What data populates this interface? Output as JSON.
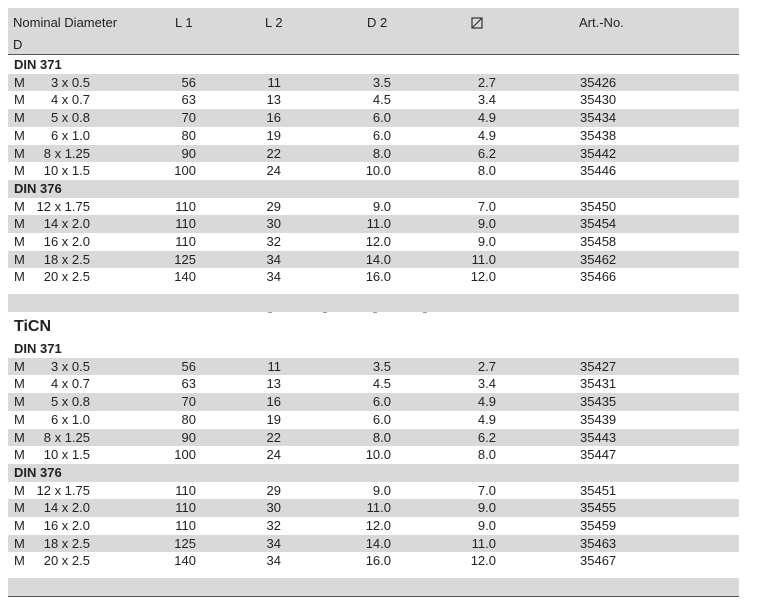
{
  "headers": {
    "nominal_diameter": "Nominal Diameter",
    "d": "D",
    "l1": "L 1",
    "l2": "L 2",
    "d2": "D 2",
    "square_symbol": "☐̸",
    "art_no": "Art.-No."
  },
  "sections": [
    {
      "title": "",
      "groups": [
        {
          "name": "DIN 371",
          "rows": [
            {
              "m": "M",
              "size": "3 x 0.5",
              "l1": "56",
              "l2": "11",
              "d2": "3.5",
              "sq": "2.7",
              "art": "35426"
            },
            {
              "m": "M",
              "size": "4 x 0.7",
              "l1": "63",
              "l2": "13",
              "d2": "4.5",
              "sq": "3.4",
              "art": "35430"
            },
            {
              "m": "M",
              "size": "5 x 0.8",
              "l1": "70",
              "l2": "16",
              "d2": "6.0",
              "sq": "4.9",
              "art": "35434"
            },
            {
              "m": "M",
              "size": "6 x 1.0",
              "l1": "80",
              "l2": "19",
              "d2": "6.0",
              "sq": "4.9",
              "art": "35438"
            },
            {
              "m": "M",
              "size": "8 x 1.25",
              "l1": "90",
              "l2": "22",
              "d2": "8.0",
              "sq": "6.2",
              "art": "35442"
            },
            {
              "m": "M",
              "size": "10 x 1.5",
              "l1": "100",
              "l2": "24",
              "d2": "10.0",
              "sq": "8.0",
              "art": "35446"
            }
          ]
        },
        {
          "name": "DIN 376",
          "rows": [
            {
              "m": "M",
              "size": "12 x 1.75",
              "l1": "110",
              "l2": "29",
              "d2": "9.0",
              "sq": "7.0",
              "art": "35450"
            },
            {
              "m": "M",
              "size": "14 x 2.0",
              "l1": "110",
              "l2": "30",
              "d2": "11.0",
              "sq": "9.0",
              "art": "35454"
            },
            {
              "m": "M",
              "size": "16 x 2.0",
              "l1": "110",
              "l2": "32",
              "d2": "12.0",
              "sq": "9.0",
              "art": "35458"
            },
            {
              "m": "M",
              "size": "18 x 2.5",
              "l1": "125",
              "l2": "34",
              "d2": "14.0",
              "sq": "11.0",
              "art": "35462"
            },
            {
              "m": "M",
              "size": "20 x 2.5",
              "l1": "140",
              "l2": "34",
              "d2": "16.0",
              "sq": "12.0",
              "art": "35466"
            }
          ]
        }
      ]
    },
    {
      "title": "TiCN",
      "groups": [
        {
          "name": "DIN 371",
          "rows": [
            {
              "m": "M",
              "size": "3 x 0.5",
              "l1": "56",
              "l2": "11",
              "d2": "3.5",
              "sq": "2.7",
              "art": "35427"
            },
            {
              "m": "M",
              "size": "4 x 0.7",
              "l1": "63",
              "l2": "13",
              "d2": "4.5",
              "sq": "3.4",
              "art": "35431"
            },
            {
              "m": "M",
              "size": "5 x 0.8",
              "l1": "70",
              "l2": "16",
              "d2": "6.0",
              "sq": "4.9",
              "art": "35435"
            },
            {
              "m": "M",
              "size": "6 x 1.0",
              "l1": "80",
              "l2": "19",
              "d2": "6.0",
              "sq": "4.9",
              "art": "35439"
            },
            {
              "m": "M",
              "size": "8 x 1.25",
              "l1": "90",
              "l2": "22",
              "d2": "8.0",
              "sq": "6.2",
              "art": "35443"
            },
            {
              "m": "M",
              "size": "10 x 1.5",
              "l1": "100",
              "l2": "24",
              "d2": "10.0",
              "sq": "8.0",
              "art": "35447"
            }
          ]
        },
        {
          "name": "DIN 376",
          "rows": [
            {
              "m": "M",
              "size": "12 x 1.75",
              "l1": "110",
              "l2": "29",
              "d2": "9.0",
              "sq": "7.0",
              "art": "35451"
            },
            {
              "m": "M",
              "size": "14 x 2.0",
              "l1": "110",
              "l2": "30",
              "d2": "11.0",
              "sq": "9.0",
              "art": "35455"
            },
            {
              "m": "M",
              "size": "16 x 2.0",
              "l1": "110",
              "l2": "32",
              "d2": "12.0",
              "sq": "9.0",
              "art": "35459"
            },
            {
              "m": "M",
              "size": "18 x 2.5",
              "l1": "125",
              "l2": "34",
              "d2": "14.0",
              "sq": "11.0",
              "art": "35463"
            },
            {
              "m": "M",
              "size": "20 x 2.5",
              "l1": "140",
              "l2": "34",
              "d2": "16.0",
              "sq": "12.0",
              "art": "35467"
            }
          ]
        }
      ]
    }
  ]
}
